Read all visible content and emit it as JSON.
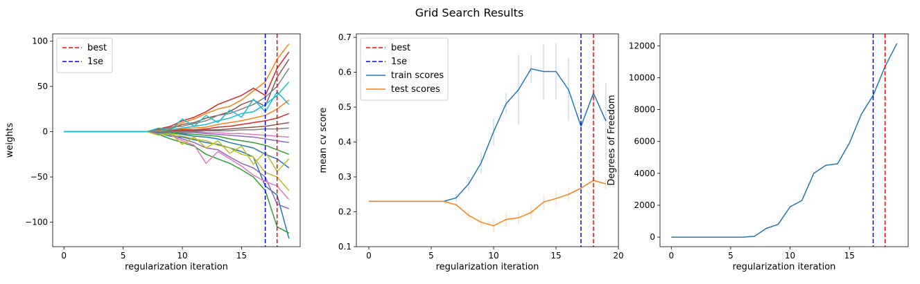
{
  "figure": {
    "title": "Grid Search Results"
  },
  "chart_data": [
    {
      "type": "line",
      "title": "",
      "xlabel": "regularization iteration",
      "ylabel": "weights",
      "xlim": [
        -0.95,
        19.95
      ],
      "ylim": [
        -127,
        108
      ],
      "xticks": [
        0,
        5,
        10,
        15
      ],
      "yticks": [
        -100,
        -50,
        0,
        50,
        100
      ],
      "legend": {
        "position": "upper-left",
        "entries": [
          {
            "label": "best",
            "color": "#ff0000",
            "style": "dashed"
          },
          {
            "label": "1se",
            "color": "#0000ff",
            "style": "dashed"
          }
        ]
      },
      "vlines": [
        {
          "name": "best",
          "x": 18,
          "color": "#ff0000"
        },
        {
          "name": "1se",
          "x": 17,
          "color": "#0000ff"
        }
      ],
      "x": [
        0,
        1,
        2,
        3,
        4,
        5,
        6,
        7,
        8,
        9,
        10,
        11,
        12,
        13,
        14,
        15,
        16,
        17,
        18,
        19
      ],
      "series": [
        {
          "values": [
            0,
            0,
            0,
            0,
            0,
            0,
            0,
            0,
            -2,
            -5,
            -6,
            -9,
            -12,
            -14,
            -18,
            -22,
            -28,
            -60,
            -70,
            -118
          ]
        },
        {
          "values": [
            0,
            0,
            0,
            0,
            0,
            0,
            0,
            0,
            2,
            4,
            10,
            14,
            20,
            25,
            28,
            35,
            45,
            55,
            80,
            97
          ]
        },
        {
          "values": [
            0,
            0,
            0,
            0,
            0,
            0,
            0,
            0,
            -3,
            -8,
            -12,
            -16,
            -25,
            -30,
            -35,
            -42,
            -50,
            -65,
            -105,
            -112
          ]
        },
        {
          "values": [
            0,
            0,
            0,
            0,
            0,
            0,
            0,
            0,
            3,
            6,
            12,
            16,
            22,
            30,
            35,
            40,
            48,
            40,
            70,
            88
          ]
        },
        {
          "values": [
            0,
            0,
            0,
            0,
            0,
            0,
            0,
            0,
            -1,
            -3,
            -8,
            -12,
            -18,
            -20,
            -28,
            -35,
            -40,
            -50,
            -80,
            -85
          ]
        },
        {
          "values": [
            0,
            0,
            0,
            0,
            0,
            0,
            0,
            0,
            1,
            3,
            8,
            10,
            15,
            18,
            22,
            30,
            35,
            28,
            60,
            80
          ]
        },
        {
          "values": [
            0,
            0,
            0,
            0,
            0,
            0,
            0,
            0,
            -2,
            -4,
            -10,
            -15,
            -35,
            -22,
            -30,
            -38,
            -48,
            -55,
            -60,
            -75
          ]
        },
        {
          "values": [
            0,
            0,
            0,
            0,
            0,
            0,
            0,
            0,
            2,
            5,
            6,
            9,
            12,
            18,
            20,
            25,
            30,
            38,
            50,
            70
          ]
        },
        {
          "values": [
            0,
            0,
            0,
            0,
            0,
            0,
            0,
            0,
            -1,
            -2,
            -5,
            -8,
            -10,
            -15,
            -18,
            -25,
            -28,
            -45,
            -50,
            -65
          ]
        },
        {
          "values": [
            0,
            0,
            0,
            0,
            0,
            0,
            0,
            0,
            1,
            2,
            4,
            6,
            8,
            12,
            15,
            20,
            22,
            30,
            40,
            55
          ]
        },
        {
          "values": [
            0,
            0,
            0,
            0,
            0,
            0,
            0,
            0,
            -1,
            -1,
            -3,
            -5,
            -6,
            -8,
            -12,
            -15,
            -18,
            -25,
            -30,
            -40
          ]
        },
        {
          "values": [
            0,
            0,
            0,
            0,
            0,
            0,
            0,
            0,
            1,
            1,
            3,
            4,
            5,
            8,
            10,
            12,
            15,
            18,
            25,
            35
          ]
        },
        {
          "values": [
            0,
            0,
            0,
            0,
            0,
            0,
            0,
            0,
            0,
            -1,
            -2,
            -3,
            -4,
            -5,
            -8,
            -10,
            -12,
            -15,
            -20,
            -25
          ]
        },
        {
          "values": [
            0,
            0,
            0,
            0,
            0,
            0,
            0,
            0,
            0,
            1,
            2,
            2,
            3,
            5,
            6,
            8,
            10,
            12,
            15,
            20
          ]
        },
        {
          "values": [
            0,
            0,
            0,
            0,
            0,
            0,
            0,
            0,
            0,
            0,
            -1,
            -1,
            -2,
            -3,
            -4,
            -5,
            -6,
            -8,
            -10,
            -12
          ]
        },
        {
          "values": [
            0,
            0,
            0,
            0,
            0,
            0,
            0,
            0,
            0,
            0,
            1,
            1,
            2,
            2,
            3,
            4,
            5,
            6,
            8,
            10
          ]
        },
        {
          "values": [
            0,
            0,
            0,
            0,
            0,
            0,
            0,
            0,
            0,
            0,
            0,
            0,
            -1,
            -1,
            -2,
            -2,
            -3,
            -4,
            -5,
            -6
          ]
        },
        {
          "values": [
            0,
            0,
            0,
            0,
            0,
            0,
            0,
            0,
            0,
            0,
            0,
            0,
            1,
            1,
            1,
            2,
            2,
            3,
            3,
            4
          ]
        },
        {
          "values": [
            0,
            0,
            0,
            0,
            0,
            0,
            0,
            0,
            -4,
            -2,
            -14,
            -6,
            -18,
            -10,
            -24,
            -16,
            -36,
            -22,
            -44,
            -30
          ]
        },
        {
          "values": [
            0,
            0,
            0,
            0,
            0,
            0,
            0,
            0,
            4,
            2,
            14,
            6,
            18,
            10,
            24,
            16,
            36,
            22,
            44,
            30
          ]
        }
      ]
    },
    {
      "type": "line",
      "title": "",
      "xlabel": "regularization iteration",
      "ylabel": "mean cv score",
      "xlim": [
        -1,
        20
      ],
      "ylim": [
        0.1,
        0.71
      ],
      "xticks": [
        0,
        5,
        10,
        15,
        20
      ],
      "yticks": [
        0.1,
        0.2,
        0.3,
        0.4,
        0.5,
        0.6,
        0.7
      ],
      "legend": {
        "position": "upper-left",
        "entries": [
          {
            "label": "best",
            "color": "#ff0000",
            "style": "dashed"
          },
          {
            "label": "1se",
            "color": "#0000ff",
            "style": "dashed"
          },
          {
            "label": "train scores",
            "color": "#1f77b4",
            "style": "solid"
          },
          {
            "label": "test scores",
            "color": "#ff7f0e",
            "style": "solid"
          }
        ]
      },
      "vlines": [
        {
          "name": "best",
          "x": 18,
          "color": "#ff0000"
        },
        {
          "name": "1se",
          "x": 17,
          "color": "#0000ff"
        }
      ],
      "x": [
        0,
        1,
        2,
        3,
        4,
        5,
        6,
        7,
        8,
        9,
        10,
        11,
        12,
        13,
        14,
        15,
        16,
        17,
        18,
        19
      ],
      "series": [
        {
          "name": "train scores",
          "color": "#1f77b4",
          "values": [
            0.23,
            0.23,
            0.23,
            0.23,
            0.23,
            0.23,
            0.23,
            0.24,
            0.28,
            0.34,
            0.43,
            0.51,
            0.55,
            0.61,
            0.602,
            0.602,
            0.55,
            0.445,
            0.54,
            0.46
          ],
          "err": [
            0,
            0,
            0,
            0,
            0,
            0,
            0,
            0.01,
            0.02,
            0.03,
            0.04,
            0.03,
            0.1,
            0.04,
            0.08,
            0.08,
            0.09,
            0.06,
            0.07,
            0.11
          ]
        },
        {
          "name": "test scores",
          "color": "#ff7f0e",
          "values": [
            0.23,
            0.23,
            0.23,
            0.23,
            0.23,
            0.23,
            0.23,
            0.22,
            0.19,
            0.17,
            0.16,
            0.178,
            0.183,
            0.198,
            0.228,
            0.238,
            0.25,
            0.268,
            0.29,
            0.28
          ],
          "err": [
            0,
            0,
            0,
            0,
            0,
            0,
            0,
            0.005,
            0.01,
            0.015,
            0.02,
            0.02,
            0.02,
            0.02,
            0.02,
            0.02,
            0.02,
            0.015,
            0.015,
            0.015
          ]
        }
      ]
    },
    {
      "type": "line",
      "title": "",
      "xlabel": "regularization iteration",
      "ylabel": "Degrees of Freedom",
      "xlim": [
        -0.95,
        19.95
      ],
      "ylim": [
        -600,
        12750
      ],
      "xticks": [
        0,
        5,
        10,
        15
      ],
      "yticks": [
        0,
        2000,
        4000,
        6000,
        8000,
        10000,
        12000
      ],
      "vlines": [
        {
          "name": "best",
          "x": 18,
          "color": "#ff0000"
        },
        {
          "name": "1se",
          "x": 17,
          "color": "#0000ff"
        }
      ],
      "x": [
        0,
        1,
        2,
        3,
        4,
        5,
        6,
        7,
        8,
        9,
        10,
        11,
        12,
        13,
        14,
        15,
        16,
        17,
        18,
        19
      ],
      "series": [
        {
          "color": "#1f77b4",
          "values": [
            0,
            0,
            0,
            0,
            0,
            0,
            0,
            50,
            550,
            800,
            1900,
            2300,
            4000,
            4500,
            4600,
            5900,
            7700,
            8900,
            10700,
            12150
          ]
        }
      ]
    }
  ]
}
